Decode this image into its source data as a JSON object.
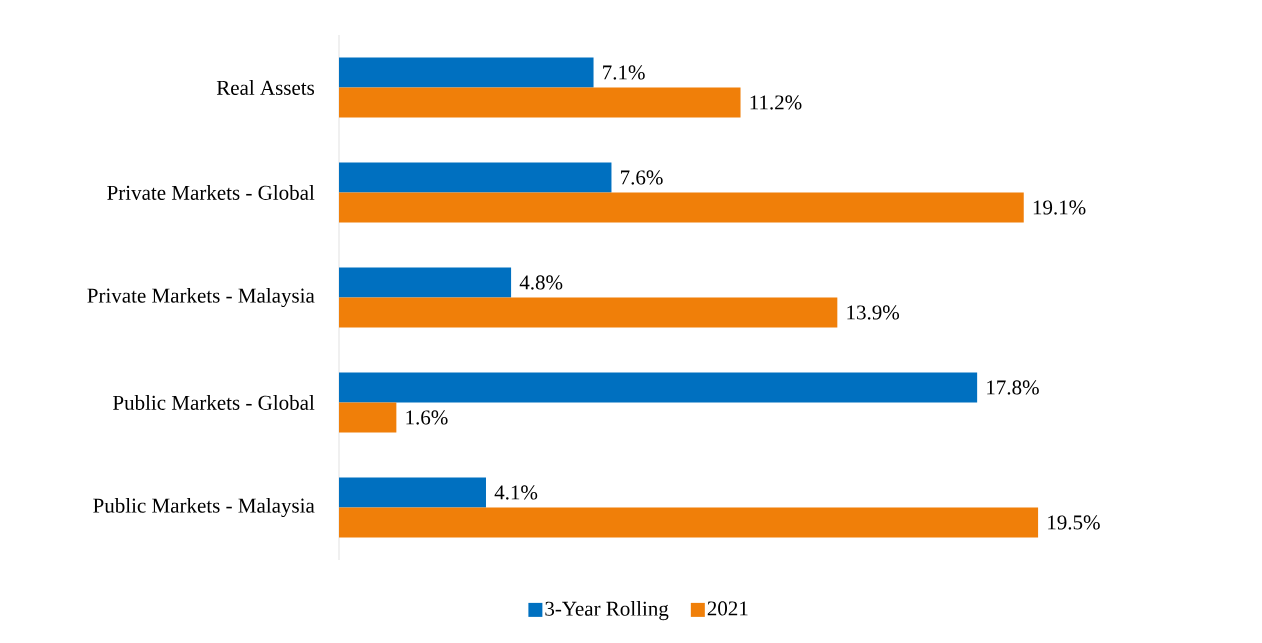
{
  "chart_data": {
    "type": "bar",
    "orientation": "horizontal",
    "legend": "bottom",
    "categories": [
      "Real Assets",
      "Private Markets - Global",
      "Private Markets - Malaysia",
      "Public Markets - Global",
      "Public Markets - Malaysia"
    ],
    "series": [
      {
        "name": "3-Year Rolling",
        "color": "#0070c0",
        "values": [
          7.1,
          7.6,
          4.8,
          17.8,
          4.1
        ],
        "value_labels": [
          "7.1%",
          "7.6%",
          "4.8%",
          "17.8%",
          "4.1%"
        ]
      },
      {
        "name": "2021",
        "color": "#f07f09",
        "values": [
          11.2,
          19.1,
          13.9,
          1.6,
          19.5
        ],
        "value_labels": [
          "11.2%",
          "19.1%",
          "13.9%",
          "1.6%",
          "19.5%"
        ]
      }
    ]
  }
}
